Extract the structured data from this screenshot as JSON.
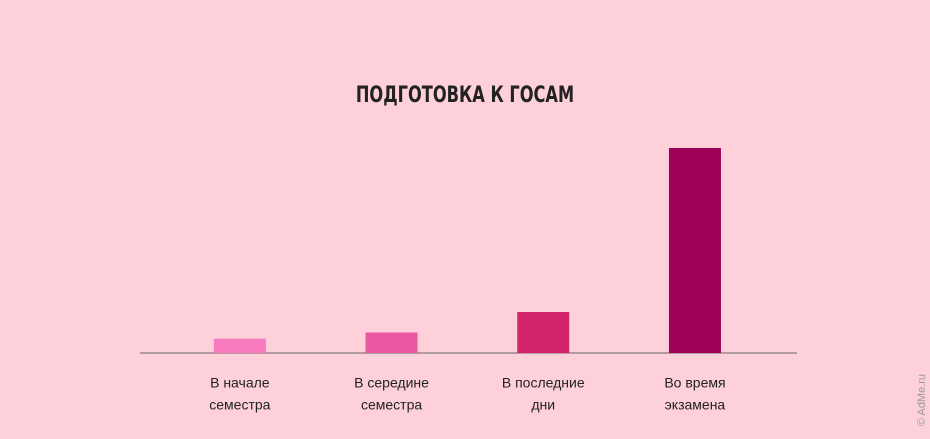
{
  "chart_data": {
    "type": "bar",
    "title": "ПОДГОТОВКА К ГОСАМ",
    "categories": [
      [
        "В начале",
        "семестра"
      ],
      [
        "В середине",
        "семестра"
      ],
      [
        "В последние",
        "дни"
      ],
      [
        "Во время",
        "экзамена"
      ]
    ],
    "values": [
      7,
      10,
      20,
      100
    ],
    "colors": [
      "#f77bbd",
      "#ea58a2",
      "#d2246b",
      "#a00057"
    ],
    "ylim": [
      0,
      100
    ]
  },
  "watermark": "© AdMe.ru"
}
